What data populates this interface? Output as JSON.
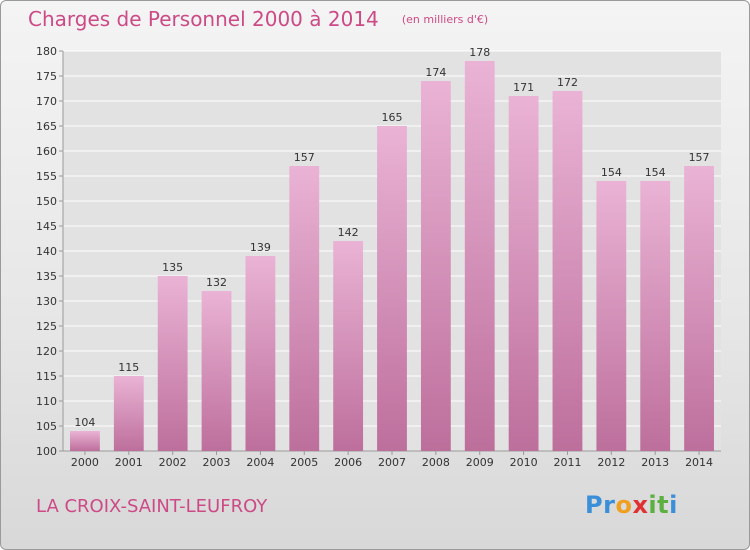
{
  "title": "Charges de Personnel 2000 à 2014",
  "unit_note": "(en milliers d'€)",
  "town": "LA CROIX-SAINT-LEUFROY",
  "brand": {
    "letters": [
      "P",
      "r",
      "o",
      "x",
      "i",
      "t",
      "i"
    ]
  },
  "colors": {
    "title": "#cc4a86",
    "bar_light": "#eab3d5",
    "bar_dark": "#bd6f9c",
    "axis": "#9a9a9a",
    "grid": "#ffffff"
  },
  "chart_data": {
    "type": "bar",
    "title": "Charges de Personnel 2000 à 2014",
    "subtitle": "(en milliers d'€)",
    "categories": [
      "2000",
      "2001",
      "2002",
      "2003",
      "2004",
      "2005",
      "2006",
      "2007",
      "2008",
      "2009",
      "2010",
      "2011",
      "2012",
      "2013",
      "2014"
    ],
    "values": [
      104,
      115,
      135,
      132,
      139,
      157,
      142,
      165,
      174,
      178,
      171,
      172,
      154,
      154,
      157
    ],
    "ylim": [
      100,
      180
    ],
    "yticks": [
      100,
      105,
      110,
      115,
      120,
      125,
      130,
      135,
      140,
      145,
      150,
      155,
      160,
      165,
      170,
      175,
      180
    ],
    "grid": true,
    "data_labels": true,
    "legend": "none"
  }
}
